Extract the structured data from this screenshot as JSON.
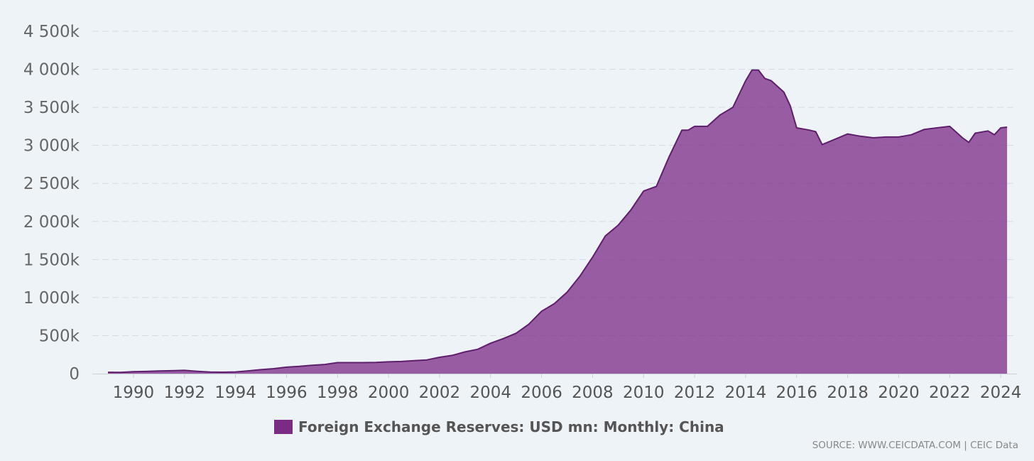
{
  "chart_data": {
    "type": "area",
    "title": "",
    "xlabel": "",
    "ylabel": "",
    "xlim": [
      1988.75,
      2024.33
    ],
    "ylim": [
      0,
      4500000
    ],
    "x_ticks": [
      1990,
      1992,
      1994,
      1996,
      1998,
      2000,
      2002,
      2004,
      2006,
      2008,
      2010,
      2012,
      2014,
      2016,
      2018,
      2020,
      2022,
      2024
    ],
    "x_tick_labels": [
      "1990",
      "1992",
      "1994",
      "1996",
      "1998",
      "2000",
      "2002",
      "2004",
      "2006",
      "2008",
      "2010",
      "2012",
      "2014",
      "2016",
      "2018",
      "2020",
      "2022",
      "2024"
    ],
    "y_ticks": [
      0,
      500000,
      1000000,
      1500000,
      2000000,
      2500000,
      3000000,
      3500000,
      4000000,
      4500000
    ],
    "y_tick_labels": [
      "0",
      "500k",
      "1 000k",
      "1 500k",
      "2 000k",
      "2 500k",
      "3 000k",
      "3 500k",
      "4 000k",
      "4 500k"
    ],
    "grid": true,
    "legend_position": "bottom-center",
    "color": "#7b2a86",
    "series": [
      {
        "name": "Foreign Exchange Reserves: USD mn: Monthly: China",
        "x": [
          1989.0,
          1989.5,
          1990.0,
          1990.5,
          1991.0,
          1991.5,
          1992.0,
          1992.5,
          1993.0,
          1993.5,
          1994.0,
          1994.5,
          1995.0,
          1995.5,
          1996.0,
          1996.5,
          1997.0,
          1997.5,
          1998.0,
          1998.5,
          1999.0,
          1999.5,
          2000.0,
          2000.5,
          2001.0,
          2001.5,
          2002.0,
          2002.5,
          2003.0,
          2003.5,
          2004.0,
          2004.5,
          2005.0,
          2005.5,
          2006.0,
          2006.5,
          2007.0,
          2007.5,
          2008.0,
          2008.5,
          2009.0,
          2009.5,
          2010.0,
          2010.5,
          2011.0,
          2011.5,
          2011.75,
          2012.0,
          2012.5,
          2013.0,
          2013.5,
          2014.0,
          2014.25,
          2014.5,
          2014.75,
          2015.0,
          2015.5,
          2015.75,
          2016.0,
          2016.5,
          2016.75,
          2017.0,
          2017.5,
          2018.0,
          2018.5,
          2019.0,
          2019.5,
          2020.0,
          2020.5,
          2021.0,
          2021.5,
          2022.0,
          2022.5,
          2022.75,
          2023.0,
          2023.5,
          2023.75,
          2024.0,
          2024.25
        ],
        "values": [
          18000,
          17000,
          25000,
          29000,
          35000,
          38000,
          43000,
          31000,
          21000,
          19000,
          22000,
          36000,
          52000,
          65000,
          85000,
          95000,
          110000,
          120000,
          145000,
          145000,
          145000,
          147000,
          155000,
          160000,
          170000,
          180000,
          215000,
          240000,
          286000,
          320000,
          400000,
          460000,
          530000,
          650000,
          820000,
          920000,
          1070000,
          1280000,
          1530000,
          1810000,
          1950000,
          2150000,
          2400000,
          2460000,
          2850000,
          3200000,
          3200000,
          3250000,
          3250000,
          3400000,
          3500000,
          3850000,
          3990000,
          3990000,
          3880000,
          3850000,
          3700000,
          3520000,
          3230000,
          3200000,
          3180000,
          3010000,
          3080000,
          3150000,
          3120000,
          3100000,
          3110000,
          3110000,
          3140000,
          3210000,
          3230000,
          3250000,
          3100000,
          3040000,
          3160000,
          3190000,
          3140000,
          3230000,
          3240000
        ]
      }
    ]
  },
  "legend": {
    "label": "Foreign Exchange Reserves: USD mn: Monthly: China",
    "color": "#7b2a86"
  },
  "source_text": "SOURCE: WWW.CEICDATA.COM | CEIC Data"
}
